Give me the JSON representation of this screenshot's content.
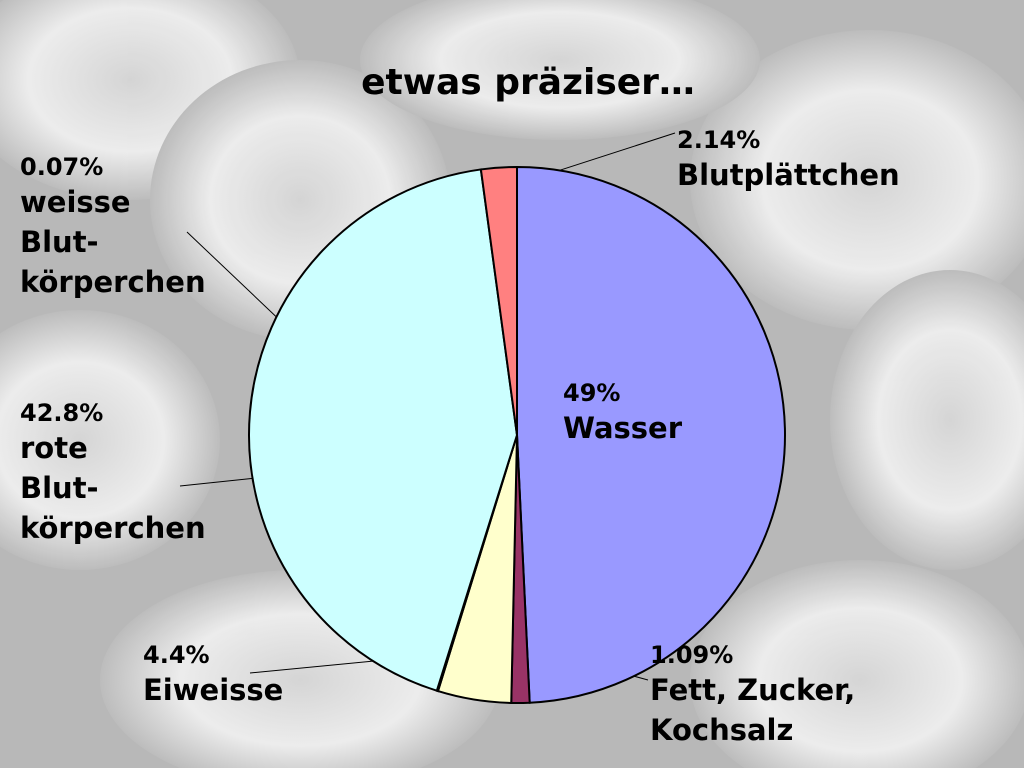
{
  "chart_data": {
    "type": "pie",
    "title": "etwas präziser…",
    "categories": [
      "Wasser",
      "Fett, Zucker,\nKochsalz",
      "Eiweisse",
      "weisse\nBlut-\nkörperchen",
      "rote\nBlut-\nkörperchen",
      "Blutplättchen"
    ],
    "values": [
      49,
      1.09,
      4.4,
      0.07,
      42.8,
      2.14
    ],
    "value_labels": [
      "49%",
      "1.09%",
      "4.4%",
      "0.07%",
      "42.8%",
      "2.14%"
    ],
    "colors": [
      "#9999ff",
      "#993366",
      "#ffffcc",
      "#ffffff",
      "#ccffff",
      "#ff8080"
    ]
  }
}
